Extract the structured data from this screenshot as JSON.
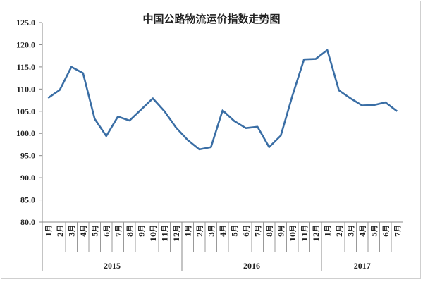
{
  "chart_data": {
    "type": "line",
    "title": "中国公路物流运价指数走势图",
    "xlabel": "",
    "ylabel": "",
    "ylim": [
      80.0,
      125.0
    ],
    "yticks": [
      "80.0",
      "85.0",
      "90.0",
      "95.0",
      "100.0",
      "105.0",
      "110.0",
      "115.0",
      "120.0",
      "125.0"
    ],
    "grid": false,
    "legend": "none",
    "line_color": "#3a6ea5",
    "years": [
      {
        "label": "2015",
        "months": [
          "1月",
          "2月",
          "3月",
          "4月",
          "5月",
          "6月",
          "7月",
          "8月",
          "9月",
          "10月",
          "11月",
          "12月"
        ]
      },
      {
        "label": "2016",
        "months": [
          "1月",
          "2月",
          "3月",
          "4月",
          "5月",
          "6月",
          "7月",
          "8月",
          "9月",
          "10月",
          "11月",
          "12月"
        ]
      },
      {
        "label": "2017",
        "months": [
          "1月",
          "2月",
          "3月",
          "4月",
          "5月",
          "6月",
          "7月"
        ]
      }
    ],
    "series": [
      {
        "values": [
          108.0,
          109.8,
          115.0,
          113.6,
          103.3,
          99.4,
          103.8,
          102.9,
          105.4,
          107.9,
          105.0,
          101.3,
          98.5,
          96.4,
          96.9,
          105.2,
          102.8,
          101.2,
          101.5,
          96.9,
          99.5,
          108.5,
          116.7,
          116.8,
          118.8,
          109.7,
          107.9,
          106.3,
          106.4,
          107.0,
          105.0
        ]
      }
    ]
  }
}
